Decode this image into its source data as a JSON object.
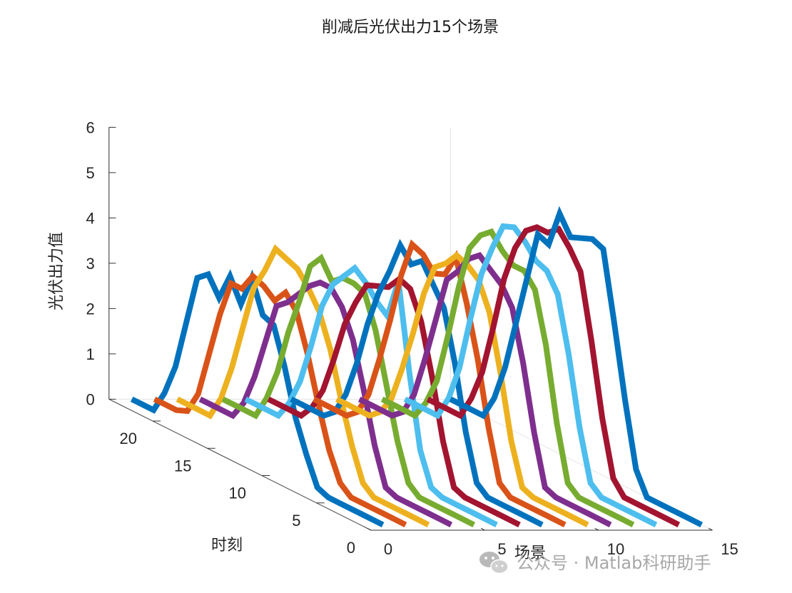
{
  "chart_data": {
    "type": "line3d",
    "title": "削减后光伏出力15个场景",
    "xlabel": "场景",
    "ylabel": "时刻",
    "zlabel": "光伏出力值",
    "xlim": [
      0,
      15
    ],
    "ylim": [
      0,
      24
    ],
    "zlim": [
      0,
      6
    ],
    "xticks": [
      "0",
      "5",
      "10",
      "15"
    ],
    "yticks": [
      "0",
      "5",
      "10",
      "15",
      "20"
    ],
    "zticks": [
      "0",
      "1",
      "2",
      "3",
      "4",
      "5",
      "6"
    ],
    "grid": "off",
    "hours": [
      1,
      2,
      3,
      4,
      5,
      6,
      7,
      8,
      9,
      10,
      11,
      12,
      13,
      14,
      15,
      16,
      17,
      18,
      19,
      20,
      21,
      22,
      23,
      24
    ],
    "series": [
      {
        "scenario": 1,
        "color": "#0072BD",
        "values": [
          0,
          0,
          0,
          0,
          0,
          0,
          0.1,
          0.7,
          1.4,
          2.4,
          3.2,
          3.3,
          4.0,
          3.3,
          3.8,
          3.2,
          3.6,
          3.4,
          2.3,
          1.2,
          0.5,
          0,
          0,
          0
        ]
      },
      {
        "scenario": 2,
        "color": "#D95319",
        "values": [
          0,
          0,
          0,
          0,
          0,
          0,
          0.2,
          0.8,
          1.7,
          2.7,
          3.5,
          3.8,
          3.5,
          3.7,
          3.8,
          3.4,
          3.4,
          2.6,
          1.6,
          0.6,
          0.1,
          0,
          0,
          0
        ]
      },
      {
        "scenario": 3,
        "color": "#EDB120",
        "values": [
          0,
          0,
          0,
          0,
          0,
          0,
          0.2,
          0.9,
          1.8,
          2.8,
          3.5,
          3.9,
          4.2,
          4.3,
          4.4,
          3.8,
          3.3,
          2.3,
          1.3,
          0.5,
          0,
          0,
          0,
          0
        ]
      },
      {
        "scenario": 4,
        "color": "#7E2F8E",
        "values": [
          0,
          0,
          0,
          0,
          0,
          0,
          0.1,
          0.9,
          2.0,
          3.0,
          3.6,
          3.9,
          3.9,
          3.7,
          3.4,
          3.1,
          2.9,
          2.0,
          1.1,
          0.4,
          0,
          0,
          0,
          0
        ]
      },
      {
        "scenario": 5,
        "color": "#77AC30",
        "values": [
          0,
          0,
          0,
          0,
          0,
          0,
          0.2,
          1.0,
          2.1,
          3.2,
          3.9,
          4.0,
          4.0,
          3.8,
          4.2,
          3.9,
          3.0,
          2.2,
          1.2,
          0.5,
          0,
          0,
          0,
          0
        ]
      },
      {
        "scenario": 6,
        "color": "#4DBEEE",
        "values": [
          0,
          0,
          0,
          0,
          0,
          0,
          0.1,
          0.8,
          2.4,
          4.3,
          3.4,
          3.6,
          3.9,
          4.1,
          3.8,
          3.5,
          2.9,
          1.9,
          1.0,
          0.4,
          0,
          0,
          0,
          0
        ]
      },
      {
        "scenario": 7,
        "color": "#A2142F",
        "values": [
          0,
          0,
          0,
          0,
          0,
          0,
          0.1,
          1.0,
          2.3,
          3.4,
          4.0,
          4.1,
          3.8,
          3.7,
          3.6,
          3.1,
          2.5,
          1.6,
          0.8,
          0.3,
          0,
          0,
          0,
          0
        ]
      },
      {
        "scenario": 8,
        "color": "#0072BD",
        "values": [
          0,
          0,
          0,
          0,
          0,
          0,
          0.2,
          1.2,
          2.6,
          3.7,
          4.1,
          4.5,
          4.3,
          4.6,
          3.9,
          3.3,
          2.5,
          1.5,
          0.7,
          0.2,
          0,
          0,
          0,
          0
        ]
      },
      {
        "scenario": 9,
        "color": "#D95319",
        "values": [
          0,
          0,
          0,
          0,
          0,
          0,
          0.2,
          1.3,
          2.7,
          3.8,
          4.7,
          4.2,
          4.1,
          4.4,
          4.5,
          3.7,
          2.6,
          1.6,
          0.7,
          0.2,
          0,
          0,
          0,
          0
        ]
      },
      {
        "scenario": 10,
        "color": "#EDB120",
        "values": [
          0,
          0,
          0,
          0,
          0,
          0,
          0.1,
          1.0,
          2.4,
          3.6,
          4.2,
          4.4,
          4.5,
          4.2,
          4.0,
          3.3,
          2.3,
          1.4,
          0.6,
          0.2,
          0,
          0,
          0,
          0
        ]
      },
      {
        "scenario": 11,
        "color": "#7E2F8E",
        "values": [
          0,
          0,
          0,
          0,
          0,
          0,
          0.1,
          1.2,
          2.6,
          3.7,
          4.1,
          4.3,
          4.5,
          4.3,
          3.9,
          3.6,
          2.6,
          1.6,
          0.7,
          0.2,
          0,
          0,
          0,
          0
        ]
      },
      {
        "scenario": 12,
        "color": "#77AC30",
        "values": [
          0,
          0,
          0,
          0,
          0,
          0,
          0.2,
          1.4,
          3.0,
          4.1,
          4.4,
          4.4,
          4.6,
          4.9,
          4.7,
          4.3,
          3.3,
          2.1,
          1.0,
          0.4,
          0,
          0,
          0,
          0
        ]
      },
      {
        "scenario": 13,
        "color": "#4DBEEE",
        "values": [
          0,
          0,
          0,
          0,
          0,
          0,
          0.2,
          1.3,
          2.8,
          4.0,
          4.4,
          4.5,
          4.8,
          5.0,
          4.9,
          4.3,
          3.6,
          2.5,
          1.3,
          0.5,
          0,
          0,
          0,
          0
        ]
      },
      {
        "scenario": 14,
        "color": "#A2142F",
        "values": [
          0,
          0,
          0,
          0,
          0,
          0,
          0.3,
          1.5,
          3.1,
          4.5,
          4.9,
          5.2,
          5.0,
          5.0,
          4.8,
          4.3,
          3.5,
          2.3,
          1.2,
          0.5,
          0,
          0,
          0,
          0
        ]
      },
      {
        "scenario": 15,
        "color": "#0072BD",
        "values": [
          0,
          0,
          0,
          0,
          0,
          0,
          0.5,
          1.9,
          3.5,
          5.0,
          5.1,
          5.0,
          4.9,
          5.3,
          4.5,
          4.6,
          3.5,
          2.4,
          1.3,
          0.5,
          0,
          0,
          0,
          0
        ]
      }
    ]
  },
  "watermark": {
    "icon": "wechat-icon",
    "text": "公众号 · Matlab科研助手"
  }
}
